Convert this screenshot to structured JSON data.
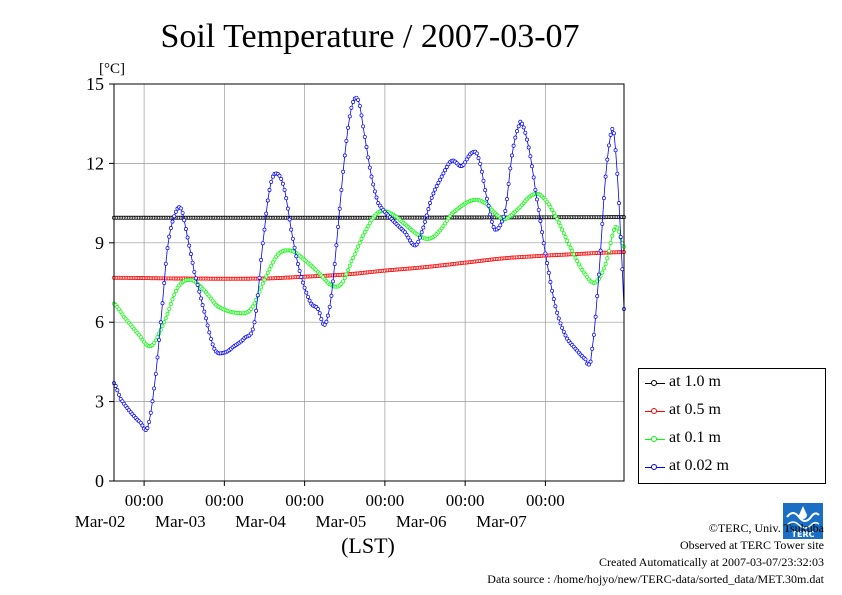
{
  "chart_data": {
    "type": "line",
    "title": "Soil Temperature / 2007-03-07",
    "ylabel": "[°C]",
    "xlabel": "(LST)",
    "ylim": [
      0,
      15
    ],
    "yticks": [
      0,
      3,
      6,
      9,
      12,
      15
    ],
    "x_range": [
      "2007-03-01T15:00",
      "2007-03-07T23:30"
    ],
    "x_tick_times": [
      "2007-03-02T00:00",
      "2007-03-03T00:00",
      "2007-03-04T00:00",
      "2007-03-05T00:00",
      "2007-03-06T00:00",
      "2007-03-07T00:00"
    ],
    "x_tick_labels": [
      {
        "time": "00:00",
        "date": "Mar-02"
      },
      {
        "time": "00:00",
        "date": "Mar-03"
      },
      {
        "time": "00:00",
        "date": "Mar-04"
      },
      {
        "time": "00:00",
        "date": "Mar-05"
      },
      {
        "time": "00:00",
        "date": "Mar-06"
      },
      {
        "time": "00:00",
        "date": "Mar-07"
      }
    ],
    "grid": true,
    "legend_position": "right",
    "series": [
      {
        "name": "at 1.0 m",
        "color": "#000000",
        "points": [
          [
            "2007-03-01T15:00",
            9.95
          ],
          [
            "2007-03-03T00:00",
            9.95
          ],
          [
            "2007-03-05T00:00",
            9.95
          ],
          [
            "2007-03-07T23:30",
            9.97
          ]
        ]
      },
      {
        "name": "at 0.5 m",
        "color": "#ff0000",
        "points": [
          [
            "2007-03-01T15:00",
            7.68
          ],
          [
            "2007-03-02T12:00",
            7.65
          ],
          [
            "2007-03-03T12:00",
            7.65
          ],
          [
            "2007-03-04T00:00",
            7.72
          ],
          [
            "2007-03-04T12:00",
            7.8
          ],
          [
            "2007-03-05T00:00",
            7.95
          ],
          [
            "2007-03-05T12:00",
            8.08
          ],
          [
            "2007-03-06T00:00",
            8.25
          ],
          [
            "2007-03-06T12:00",
            8.42
          ],
          [
            "2007-03-07T00:00",
            8.52
          ],
          [
            "2007-03-07T23:30",
            8.65
          ]
        ]
      },
      {
        "name": "at 0.1 m",
        "color": "#00ff00",
        "points": [
          [
            "2007-03-01T15:00",
            6.7
          ],
          [
            "2007-03-01T18:00",
            6.2
          ],
          [
            "2007-03-01T22:00",
            5.6
          ],
          [
            "2007-03-02T02:00",
            5.1
          ],
          [
            "2007-03-02T06:00",
            6.0
          ],
          [
            "2007-03-02T10:00",
            7.3
          ],
          [
            "2007-03-02T14:00",
            7.6
          ],
          [
            "2007-03-02T18:00",
            7.2
          ],
          [
            "2007-03-02T22:00",
            6.6
          ],
          [
            "2007-03-03T04:00",
            6.35
          ],
          [
            "2007-03-03T08:00",
            6.5
          ],
          [
            "2007-03-03T12:00",
            7.6
          ],
          [
            "2007-03-03T16:00",
            8.55
          ],
          [
            "2007-03-03T20:00",
            8.7
          ],
          [
            "2007-03-04T00:00",
            8.35
          ],
          [
            "2007-03-04T04:00",
            7.9
          ],
          [
            "2007-03-04T08:00",
            7.4
          ],
          [
            "2007-03-04T11:00",
            7.45
          ],
          [
            "2007-03-04T14:00",
            8.3
          ],
          [
            "2007-03-04T18:00",
            9.4
          ],
          [
            "2007-03-04T22:00",
            10.15
          ],
          [
            "2007-03-05T02:00",
            10.1
          ],
          [
            "2007-03-05T06:00",
            9.7
          ],
          [
            "2007-03-05T10:00",
            9.3
          ],
          [
            "2007-03-05T13:00",
            9.15
          ],
          [
            "2007-03-05T16:00",
            9.4
          ],
          [
            "2007-03-05T20:00",
            10.1
          ],
          [
            "2007-03-06T02:00",
            10.6
          ],
          [
            "2007-03-06T06:00",
            10.5
          ],
          [
            "2007-03-06T10:00",
            10.0
          ],
          [
            "2007-03-06T12:00",
            9.9
          ],
          [
            "2007-03-06T16:00",
            10.3
          ],
          [
            "2007-03-06T20:00",
            10.8
          ],
          [
            "2007-03-06T23:00",
            10.75
          ],
          [
            "2007-03-07T03:00",
            10.0
          ],
          [
            "2007-03-07T08:00",
            8.7
          ],
          [
            "2007-03-07T12:00",
            7.8
          ],
          [
            "2007-03-07T15:00",
            7.5
          ],
          [
            "2007-03-07T18:00",
            8.2
          ],
          [
            "2007-03-07T21:00",
            9.6
          ],
          [
            "2007-03-07T23:30",
            8.85
          ]
        ]
      },
      {
        "name": "at 0.02 m",
        "color": "#0000ff",
        "points": [
          [
            "2007-03-01T15:00",
            3.7
          ],
          [
            "2007-03-01T17:00",
            3.1
          ],
          [
            "2007-03-01T20:00",
            2.6
          ],
          [
            "2007-03-01T23:00",
            2.2
          ],
          [
            "2007-03-02T01:00",
            2.0
          ],
          [
            "2007-03-02T03:00",
            3.5
          ],
          [
            "2007-03-02T05:00",
            6.0
          ],
          [
            "2007-03-02T07:00",
            8.8
          ],
          [
            "2007-03-02T09:00",
            10.0
          ],
          [
            "2007-03-02T11:00",
            10.3
          ],
          [
            "2007-03-02T13:00",
            9.2
          ],
          [
            "2007-03-02T15:00",
            7.9
          ],
          [
            "2007-03-02T18:00",
            6.4
          ],
          [
            "2007-03-02T21:00",
            5.0
          ],
          [
            "2007-03-03T00:00",
            4.85
          ],
          [
            "2007-03-03T03:00",
            5.1
          ],
          [
            "2007-03-03T06:00",
            5.4
          ],
          [
            "2007-03-03T09:00",
            6.0
          ],
          [
            "2007-03-03T12:00",
            9.5
          ],
          [
            "2007-03-03T14:00",
            11.3
          ],
          [
            "2007-03-03T16:00",
            11.6
          ],
          [
            "2007-03-03T18:00",
            11.0
          ],
          [
            "2007-03-03T20:00",
            9.5
          ],
          [
            "2007-03-03T22:00",
            8.2
          ],
          [
            "2007-03-04T00:00",
            7.3
          ],
          [
            "2007-03-04T02:00",
            6.7
          ],
          [
            "2007-03-04T04:00",
            6.5
          ],
          [
            "2007-03-04T06:00",
            5.9
          ],
          [
            "2007-03-04T08:00",
            7.0
          ],
          [
            "2007-03-04T10:00",
            9.6
          ],
          [
            "2007-03-04T12:00",
            12.3
          ],
          [
            "2007-03-04T14:00",
            14.1
          ],
          [
            "2007-03-04T16:00",
            14.4
          ],
          [
            "2007-03-04T18:00",
            13.0
          ],
          [
            "2007-03-04T20:00",
            11.5
          ],
          [
            "2007-03-04T22:00",
            10.5
          ],
          [
            "2007-03-05T02:00",
            9.9
          ],
          [
            "2007-03-05T06:00",
            9.4
          ],
          [
            "2007-03-05T09:00",
            8.9
          ],
          [
            "2007-03-05T11:00",
            9.4
          ],
          [
            "2007-03-05T14:00",
            10.7
          ],
          [
            "2007-03-05T17:00",
            11.5
          ],
          [
            "2007-03-05T20:00",
            12.1
          ],
          [
            "2007-03-05T23:00",
            11.9
          ],
          [
            "2007-03-06T02:00",
            12.4
          ],
          [
            "2007-03-06T04:00",
            12.2
          ],
          [
            "2007-03-06T07:00",
            10.4
          ],
          [
            "2007-03-06T09:00",
            9.5
          ],
          [
            "2007-03-06T12:00",
            10.2
          ],
          [
            "2007-03-06T14:00",
            12.3
          ],
          [
            "2007-03-06T16:00",
            13.4
          ],
          [
            "2007-03-06T17:00",
            13.5
          ],
          [
            "2007-03-06T19:00",
            12.6
          ],
          [
            "2007-03-06T21:00",
            11.0
          ],
          [
            "2007-03-07T00:00",
            8.6
          ],
          [
            "2007-03-07T03:00",
            6.6
          ],
          [
            "2007-03-07T06:00",
            5.5
          ],
          [
            "2007-03-07T09:00",
            5.0
          ],
          [
            "2007-03-07T12:00",
            4.6
          ],
          [
            "2007-03-07T13:00",
            4.4
          ],
          [
            "2007-03-07T14:00",
            5.0
          ],
          [
            "2007-03-07T16:00",
            7.8
          ],
          [
            "2007-03-07T18:00",
            11.5
          ],
          [
            "2007-03-07T20:00",
            13.3
          ],
          [
            "2007-03-07T21:00",
            12.5
          ],
          [
            "2007-03-07T22:00",
            10.5
          ],
          [
            "2007-03-07T23:00",
            8.0
          ],
          [
            "2007-03-07T23:30",
            6.5
          ]
        ]
      }
    ]
  },
  "footer": {
    "copyright": "©TERC, Univ. Tsukuba",
    "site": "Observed at TERC Tower site",
    "created": "Created Automatically at 2007-03-07/23:32:03",
    "source": "Data source : /home/hojyo/new/TERC-data/sorted_data/MET.30m.dat"
  },
  "logo": {
    "text": "TERC"
  }
}
